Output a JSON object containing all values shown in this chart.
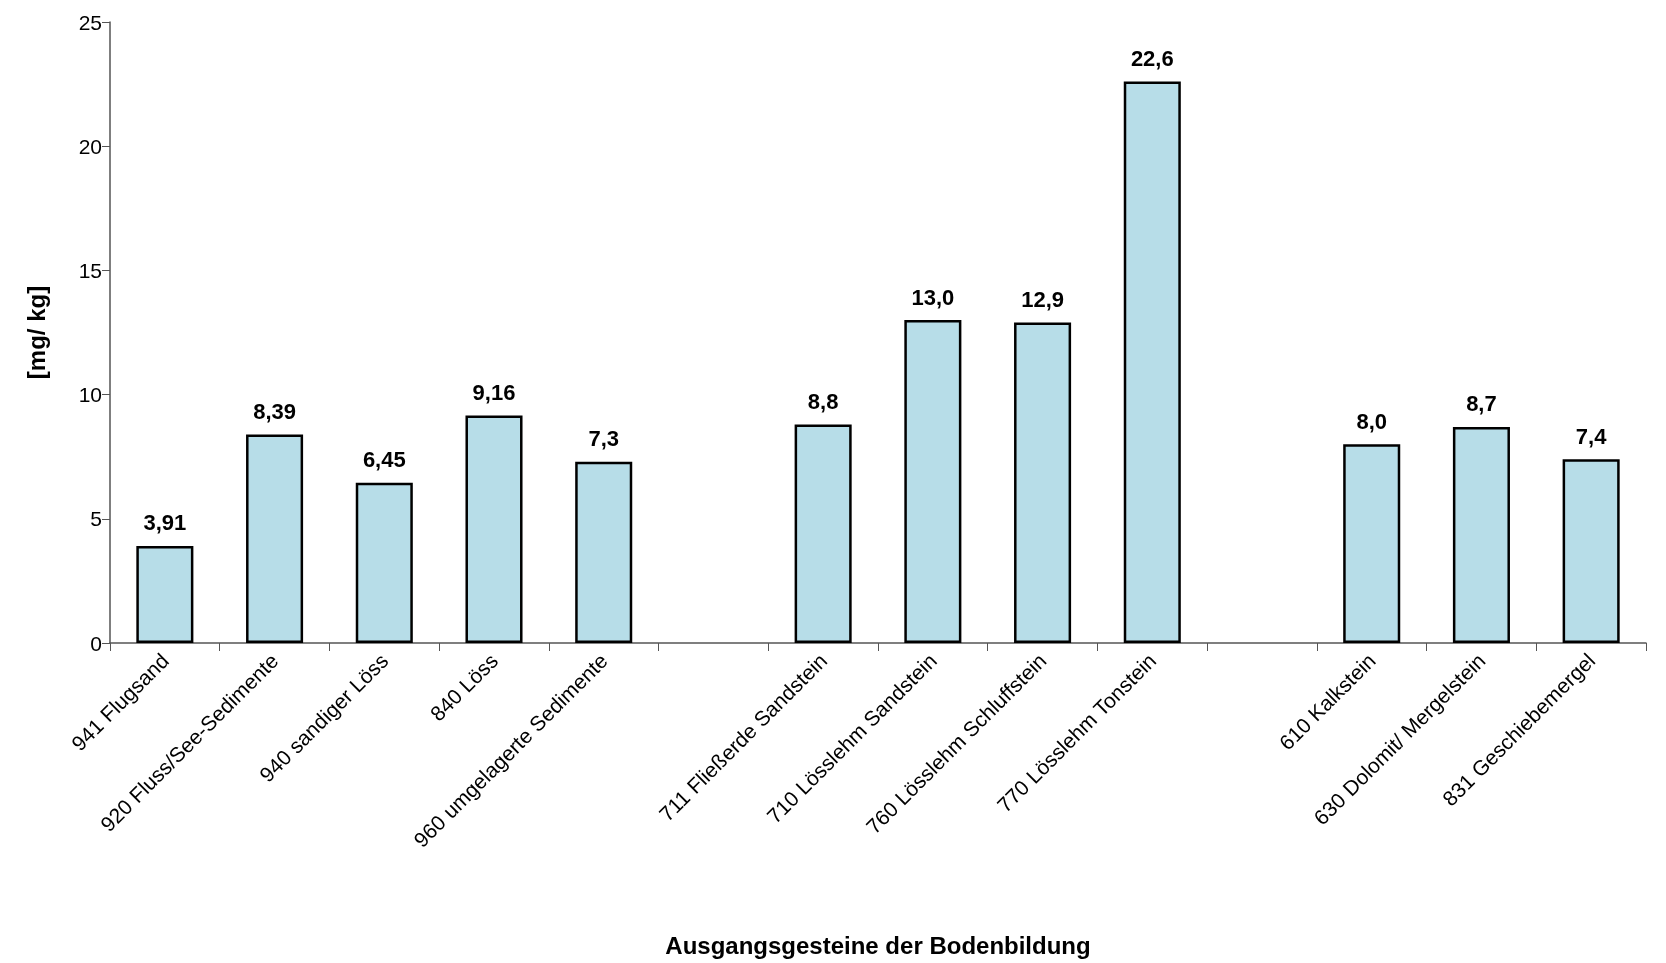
{
  "chart_data": {
    "type": "bar",
    "xlabel": "Ausgangsgesteine der Bodenbildung",
    "ylabel": "[mg/ kg]",
    "categories": [
      "941 Flugsand",
      "920 Fluss/See-Sedimente",
      "940 sandiger Löss",
      "840 Löss",
      "960 umgelagerte Sedimente",
      null,
      "711 Fließerde Sandstein",
      "710 Lösslehm Sandstein",
      "760 Lösslehm Schluffstein",
      "770 Lösslehm Tonstein",
      null,
      "610 Kalkstein",
      "630 Dolomit/ Mergelstein",
      "831 Geschiebemergel"
    ],
    "values": [
      3.91,
      8.39,
      6.45,
      9.16,
      7.3,
      null,
      8.8,
      13.0,
      12.9,
      22.6,
      null,
      8.0,
      8.7,
      7.4
    ],
    "value_labels": [
      "3,91",
      "8,39",
      "6,45",
      "9,16",
      "7,3",
      null,
      "8,8",
      "13,0",
      "12,9",
      "22,6",
      null,
      "8,0",
      "8,7",
      "7,4"
    ],
    "color": "#b7dde8",
    "ylim": [
      0,
      25
    ],
    "yticks": [
      0,
      5,
      10,
      15,
      20,
      25
    ]
  }
}
